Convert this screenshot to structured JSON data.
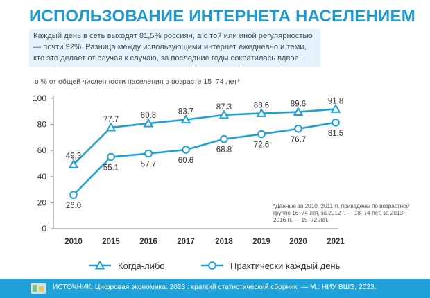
{
  "header": {
    "title": "ИСПОЛЬЗОВАНИЕ ИНТЕРНЕТА НАСЕЛЕНИЕМ",
    "lead": "Каждый день в сеть выходят 81,5% россиян, а с той или иной регулярностью — почти 92%. Разница между использующими интернет ежедневно и теми, кто это делает от случая к случаю, за последние годы сократилась вдвое."
  },
  "chart_data": {
    "type": "line",
    "subtitle": "в % от общей численности населения в возрасте 15–74 лет*",
    "categories": [
      "2010",
      "2015",
      "2016",
      "2017",
      "2018",
      "2019",
      "2020",
      "2021"
    ],
    "ylim": [
      0,
      100
    ],
    "yticks": [
      0,
      20,
      40,
      60,
      80,
      100
    ],
    "grid": false,
    "legend_position": "bottom",
    "series": [
      {
        "name": "Когда-либо",
        "marker": "triangle",
        "color": "#1fa0d6",
        "values": [
          49.3,
          77.7,
          80.8,
          83.7,
          87.3,
          88.6,
          89.6,
          91.8
        ],
        "labels": [
          "49.3",
          "77.7",
          "80.8",
          "83.7",
          "87.3",
          "88.6",
          "89.6",
          "91.8"
        ]
      },
      {
        "name": "Практически каждый день",
        "marker": "circle",
        "color": "#1fa0d6",
        "values": [
          26.0,
          55.1,
          57.7,
          60.6,
          68.8,
          72.6,
          76.7,
          81.5
        ],
        "labels": [
          "26.0",
          "55.1",
          "57.7",
          "60.6",
          "68.8",
          "72.6",
          "76.7",
          "81.5"
        ]
      }
    ],
    "footnote": "*Данные за 2010, 2011 гг. приведены по возрастной группе 16–74 лет, за 2012 г. — 18–74 лет, за 2013–2016 гг. — 15–72 лет."
  },
  "footer": {
    "source": "ИСТОЧНИК: Цифровая экономика: 2023 : краткий статистический сборник. — М.: НИУ ВШЭ, 2023."
  }
}
